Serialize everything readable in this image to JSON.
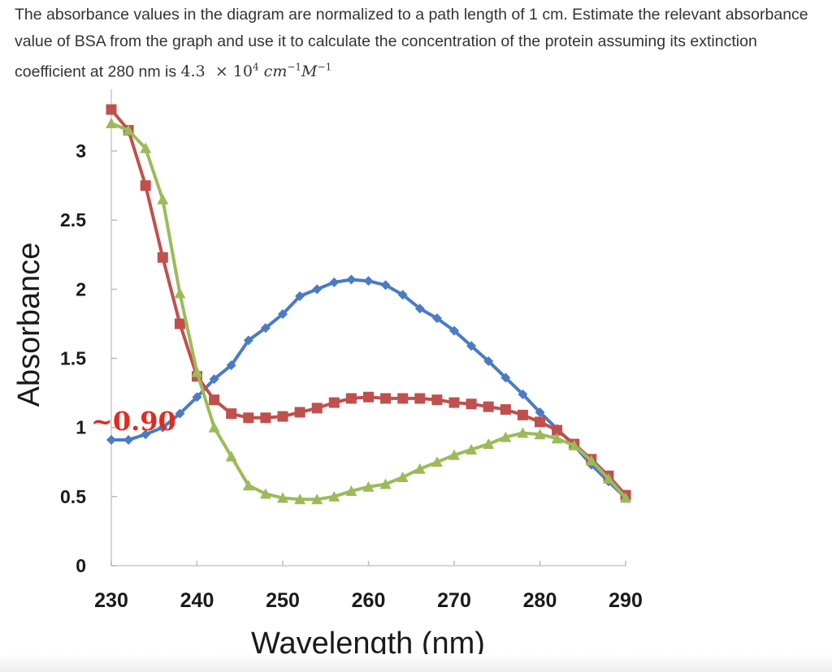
{
  "question": {
    "text": "The absorbance values in the diagram are normalized to a path length of 1 cm. Estimate the relevant absorbance value of BSA from the graph and use it to calculate the concentration of the protein assuming its extinction coefficient at 280 nm is",
    "coef_mantissa": "4.3",
    "coef_times": "×",
    "coef_base": "10",
    "coef_exp": "4",
    "unit_cm": "cm",
    "unit_cm_exp": "−1",
    "unit_M": "M",
    "unit_M_exp": "−1"
  },
  "chart_data": {
    "type": "line",
    "title": "",
    "xlabel": "Wavelength (nm)",
    "ylabel": "Absorbance",
    "xlim": [
      230,
      290
    ],
    "ylim": [
      0,
      3.3
    ],
    "xticks": [
      230,
      240,
      250,
      260,
      270,
      280,
      290
    ],
    "yticks": [
      0,
      0.5,
      1,
      1.5,
      2,
      2.5,
      3
    ],
    "ytick_labels": [
      "0",
      "0.5",
      "1",
      "1.5",
      "2",
      "2.5",
      "3"
    ],
    "grid": false,
    "legend": "none",
    "annotation": {
      "text": "~0.90",
      "color": "#e02b20"
    },
    "series": [
      {
        "color": "#4a7bc4",
        "marker": "diamond",
        "x": [
          230,
          232,
          234,
          236,
          238,
          240,
          242,
          244,
          246,
          248,
          250,
          252,
          254,
          256,
          258,
          260,
          262,
          264,
          266,
          268,
          270,
          272,
          274,
          276,
          278,
          280,
          282,
          284,
          286,
          288,
          290
        ],
        "y": [
          0.91,
          0.91,
          0.95,
          1.0,
          1.1,
          1.22,
          1.35,
          1.45,
          1.63,
          1.72,
          1.82,
          1.95,
          2.0,
          2.05,
          2.07,
          2.06,
          2.03,
          1.96,
          1.86,
          1.79,
          1.7,
          1.59,
          1.48,
          1.36,
          1.24,
          1.11,
          0.99,
          0.87,
          0.73,
          0.61,
          0.49
        ]
      },
      {
        "color": "#c0504d",
        "marker": "square",
        "x": [
          230,
          232,
          234,
          236,
          238,
          240,
          242,
          244,
          246,
          248,
          250,
          252,
          254,
          256,
          258,
          260,
          262,
          264,
          266,
          268,
          270,
          272,
          274,
          276,
          278,
          280,
          282,
          284,
          286,
          288,
          290
        ],
        "y": [
          3.3,
          3.15,
          2.75,
          2.23,
          1.75,
          1.37,
          1.2,
          1.1,
          1.07,
          1.07,
          1.08,
          1.11,
          1.14,
          1.18,
          1.21,
          1.22,
          1.21,
          1.21,
          1.21,
          1.2,
          1.18,
          1.17,
          1.15,
          1.13,
          1.09,
          1.04,
          0.98,
          0.88,
          0.77,
          0.65,
          0.51
        ]
      },
      {
        "color": "#9bbb59",
        "marker": "triangle",
        "x": [
          230,
          232,
          234,
          236,
          238,
          240,
          242,
          244,
          246,
          248,
          250,
          252,
          254,
          256,
          258,
          260,
          262,
          264,
          266,
          268,
          270,
          272,
          274,
          276,
          278,
          280,
          282,
          284,
          286,
          288,
          290
        ],
        "y": [
          3.2,
          3.15,
          3.02,
          2.65,
          1.97,
          1.4,
          1.0,
          0.79,
          0.58,
          0.52,
          0.49,
          0.48,
          0.48,
          0.5,
          0.54,
          0.57,
          0.59,
          0.64,
          0.7,
          0.75,
          0.8,
          0.84,
          0.88,
          0.93,
          0.96,
          0.95,
          0.92,
          0.87,
          0.76,
          0.63,
          0.49
        ]
      }
    ]
  }
}
